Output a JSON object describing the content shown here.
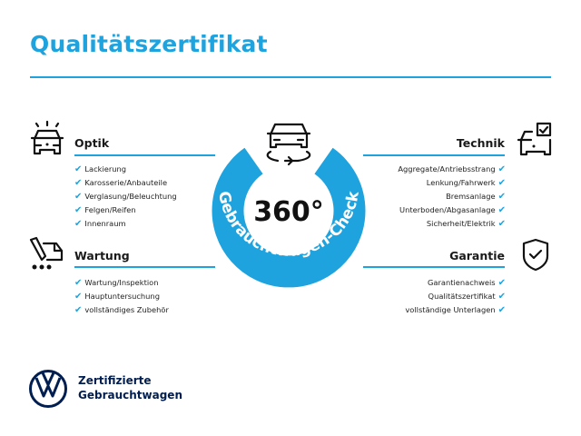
{
  "title": "Qualitätszertifikat",
  "badge": {
    "value": "360°",
    "arc_text": "Gebrauchtwagen-Check",
    "color": "#1ea3df",
    "icon": "car-rotate-icon"
  },
  "sections": {
    "optik": {
      "heading": "Optik",
      "icon": "car-lights-icon",
      "items": [
        "Lackierung",
        "Karosserie/Anbauteile",
        "Verglasung/Beleuchtung",
        "Felgen/Reifen",
        "Innenraum"
      ]
    },
    "wartung": {
      "heading": "Wartung",
      "icon": "tools-truck-icon",
      "items": [
        "Wartung/Inspektion",
        "Hauptuntersuchung",
        "vollständiges Zubehör"
      ]
    },
    "technik": {
      "heading": "Technik",
      "icon": "car-checkbox-icon",
      "items": [
        "Aggregate/Antriebsstrang",
        "Lenkung/Fahrwerk",
        "Bremsanlage",
        "Unterboden/Abgasanlage",
        "Sicherheit/Elektrik"
      ]
    },
    "garantie": {
      "heading": "Garantie",
      "icon": "shield-check-icon",
      "items": [
        "Garantienachweis",
        "Qualitätszertifikat",
        "vollständige Unterlagen"
      ]
    }
  },
  "check_glyph": "✔",
  "footer": {
    "line1": "Zertifizierte",
    "line2": "Gebrauchtwagen",
    "logo": "vw-logo",
    "logo_color": "#001e50"
  }
}
